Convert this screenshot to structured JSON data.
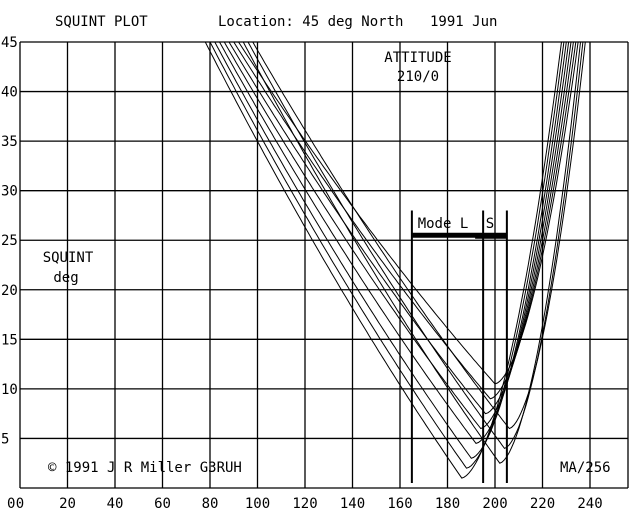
{
  "header": {
    "title": "SQUINT PLOT",
    "location": "Location:  45 deg North",
    "date": "1991 Jun"
  },
  "attitude": {
    "label": "ATTITUDE",
    "value": "210/0"
  },
  "ylabel": {
    "line1": "SQUINT",
    "line2": "deg"
  },
  "copyright": "© 1991 J R Miller G3RUH",
  "ma_label": "MA/256",
  "modes": {
    "mode_l": "Mode L",
    "mode_s": "S"
  },
  "chart_data": {
    "type": "line",
    "title": "SQUINT PLOT",
    "xlabel": "",
    "ylabel": "SQUINT deg",
    "xlim": [
      0,
      256
    ],
    "ylim": [
      0,
      45
    ],
    "grid": true,
    "x_ticks": [
      "0",
      "20",
      "40",
      "60",
      "80",
      "100",
      "120",
      "140",
      "160",
      "180",
      "200",
      "220",
      "240"
    ],
    "y_ticks": [
      "5",
      "10",
      "15",
      "20",
      "25",
      "30",
      "35",
      "40",
      "45"
    ],
    "mode_markers": {
      "mode_l": [
        165,
        195
      ],
      "mode_s": [
        195,
        205
      ],
      "bar_level": 25.5
    },
    "series": [
      {
        "min_ma": 186,
        "min_squint": 1.0,
        "start_ma": 78,
        "end_ma": 228
      },
      {
        "min_ma": 188,
        "min_squint": 2.0,
        "start_ma": 80,
        "end_ma": 229
      },
      {
        "min_ma": 190,
        "min_squint": 3.0,
        "start_ma": 82,
        "end_ma": 230
      },
      {
        "min_ma": 192,
        "min_squint": 4.5,
        "start_ma": 84,
        "end_ma": 231
      },
      {
        "min_ma": 194,
        "min_squint": 6.0,
        "start_ma": 86,
        "end_ma": 232
      },
      {
        "min_ma": 196,
        "min_squint": 7.5,
        "start_ma": 88,
        "end_ma": 233
      },
      {
        "min_ma": 198,
        "min_squint": 9.0,
        "start_ma": 90,
        "end_ma": 234
      },
      {
        "min_ma": 200,
        "min_squint": 10.5,
        "start_ma": 92,
        "end_ma": 235
      },
      {
        "min_ma": 202,
        "min_squint": 2.5,
        "start_ma": 94,
        "end_ma": 236
      },
      {
        "min_ma": 204,
        "min_squint": 4.0,
        "start_ma": 96,
        "end_ma": 237
      },
      {
        "min_ma": 206,
        "min_squint": 6.0,
        "start_ma": 98,
        "end_ma": 238
      }
    ]
  }
}
